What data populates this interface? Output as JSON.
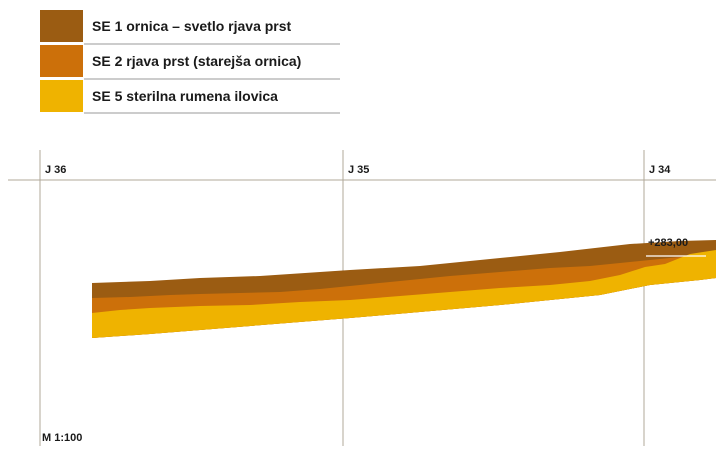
{
  "legend": [
    {
      "label": "SE 1 ornica – svetlo rjava prst"
    },
    {
      "label": "SE 2 rjava prst (starejša ornica)"
    },
    {
      "label": "SE 5 sterilna rumena ilovica"
    }
  ],
  "grid_labels": [
    "J 36",
    "J 35",
    "J 34"
  ],
  "elevation_label": "+283,00",
  "scale_label": "M 1:100"
}
